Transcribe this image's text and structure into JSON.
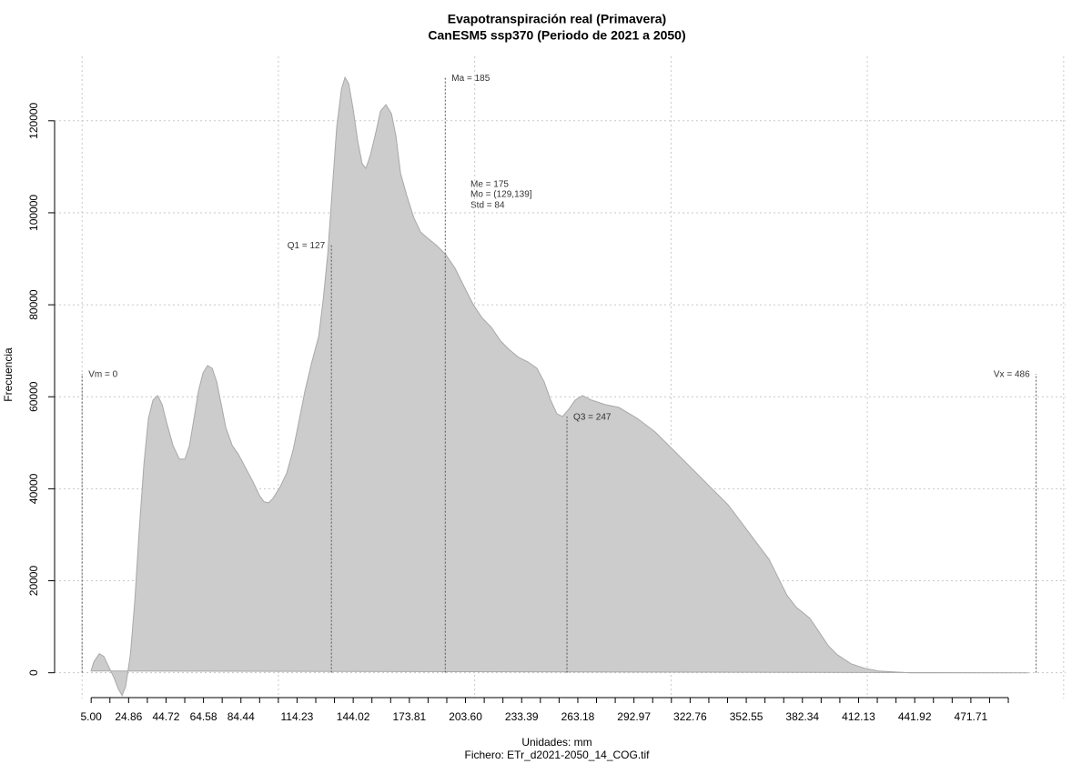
{
  "chart_data": {
    "type": "area",
    "title": "Evapotranspiración real (Primavera)",
    "subtitle": "CanESM5 ssp370 (Periodo de 2021 a 2050)",
    "xlabel": "Unidades: mm",
    "note": "Fichero: ETr_d2021-2050_14_COG.tif",
    "ylabel": "Frecuencia",
    "color": "#cccccc",
    "x": [
      4.6,
      6.0,
      8.8,
      11.1,
      13.9,
      16.2,
      18.5,
      20.4,
      22.2,
      24.6,
      26.9,
      29.2,
      31.5,
      33.8,
      36.1,
      38.5,
      40.8,
      43.1,
      46.3,
      49.6,
      52.4,
      54.7,
      57.0,
      59.3,
      61.6,
      63.9,
      66.3,
      68.6,
      70.9,
      73.2,
      76.5,
      79.7,
      83.4,
      87.1,
      90.4,
      92.7,
      95.0,
      97.3,
      101.0,
      104.3,
      107.5,
      110.3,
      113.5,
      116.8,
      120.5,
      122.8,
      125.1,
      127.4,
      129.7,
      132.1,
      133.9,
      135.8,
      138.1,
      140.4,
      142.7,
      144.6,
      146.9,
      149.7,
      152.0,
      154.8,
      157.6,
      159.9,
      162.2,
      165.4,
      169.1,
      172.4,
      176.1,
      180.7,
      185.3,
      190.0,
      194.6,
      199.3,
      203.9,
      208.5,
      213.2,
      217.8,
      222.4,
      227.1,
      231.7,
      235.4,
      238.7,
      241.9,
      244.7,
      247.9,
      251.2,
      254.9,
      259.5,
      266.5,
      273.4,
      282.7,
      291.9,
      301.2,
      310.5,
      319.7,
      329.0,
      336.0,
      342.9,
      349.9,
      354.5,
      359.1,
      363.8,
      370.7,
      375.4,
      380.0,
      384.6,
      391.6,
      398.5,
      405.5,
      421.7,
      481.9
    ],
    "y": [
      395,
      2371,
      4150,
      3557,
      988,
      -988,
      -3557,
      -4940,
      -2964,
      3952,
      15808,
      31616,
      45448,
      55328,
      59280,
      60268,
      58292,
      54340,
      49400,
      46436,
      46436,
      49400,
      55328,
      61256,
      65208,
      66789,
      66196,
      63232,
      58292,
      53352,
      49400,
      47424,
      44460,
      41496,
      38532,
      37149,
      36951,
      37939,
      40508,
      43472,
      48412,
      54340,
      61256,
      67184,
      73112,
      81016,
      90896,
      104728,
      118560,
      126859,
      129428,
      128045,
      122512,
      115596,
      110656,
      109668,
      112632,
      117572,
      122117,
      123500,
      121524,
      116584,
      108680,
      103740,
      98800,
      95836,
      94453,
      92872,
      90896,
      87932,
      83980,
      80028,
      77064,
      75088,
      72124,
      70148,
      68567,
      67579,
      66196,
      63232,
      59280,
      56316,
      55723,
      57304,
      59280,
      60268,
      59280,
      58292,
      57699,
      55328,
      52364,
      48412,
      44460,
      40508,
      36556,
      32604,
      28652,
      24700,
      20748,
      16796,
      14227,
      11856,
      8892,
      5928,
      3952,
      1976,
      988,
      395,
      0,
      0
    ],
    "xlim": [
      -14,
      501
    ],
    "ylim": [
      -5600,
      134000
    ],
    "yticks": [
      0,
      20000,
      40000,
      60000,
      80000,
      100000,
      120000
    ],
    "xticks": [
      {
        "value": 4.63,
        "label": "5.00"
      },
      {
        "value": 23.7,
        "label": "24.86"
      },
      {
        "value": 42.77,
        "label": "44.72"
      },
      {
        "value": 61.84,
        "label": "64.58"
      },
      {
        "value": 80.91,
        "label": "84.44"
      },
      {
        "value": 109.5,
        "label": "114.23"
      },
      {
        "value": 138.11,
        "label": "144.02"
      },
      {
        "value": 166.71,
        "label": "173.81"
      },
      {
        "value": 195.31,
        "label": "203.60"
      },
      {
        "value": 223.92,
        "label": "233.39"
      },
      {
        "value": 252.52,
        "label": "263.18"
      },
      {
        "value": 281.12,
        "label": "292.97"
      },
      {
        "value": 309.73,
        "label": "322.76"
      },
      {
        "value": 338.33,
        "label": "352.55"
      },
      {
        "value": 366.93,
        "label": "382.34"
      },
      {
        "value": 395.54,
        "label": "412.13"
      },
      {
        "value": 424.14,
        "label": "441.92"
      },
      {
        "value": 452.74,
        "label": "471.71"
      }
    ],
    "xminorticks": [
      14.17,
      33.24,
      52.3,
      71.37,
      90.44,
      99.97,
      119.04,
      128.57,
      147.64,
      157.18,
      176.24,
      185.78,
      204.85,
      214.38,
      233.45,
      242.99,
      262.05,
      271.59,
      290.66,
      300.19,
      319.26,
      328.8,
      347.86,
      357.4,
      376.47,
      386.0,
      405.07,
      414.61,
      433.67,
      443.21,
      462.28,
      471.81
    ],
    "xgrid": [
      0,
      100,
      200,
      300,
      400,
      500
    ],
    "grid": true,
    "markers": [
      {
        "label": "Vm = 0",
        "value": 0,
        "height": 65000,
        "label_side": "right"
      },
      {
        "label": "Q1 = 127",
        "value": 127,
        "height": 93000,
        "label_side": "left"
      },
      {
        "label": "Ma = 185",
        "value": 185,
        "height": 129400,
        "label_side": "right"
      },
      {
        "label": "Q3 = 247",
        "value": 247,
        "height": 55700,
        "label_side": "right"
      },
      {
        "label": "Vx = 486",
        "value": 486,
        "height": 65000,
        "label_side": "left"
      }
    ],
    "stats_text": [
      "Me = 175",
      "Mo = (129,139]",
      "Std = 84"
    ]
  }
}
